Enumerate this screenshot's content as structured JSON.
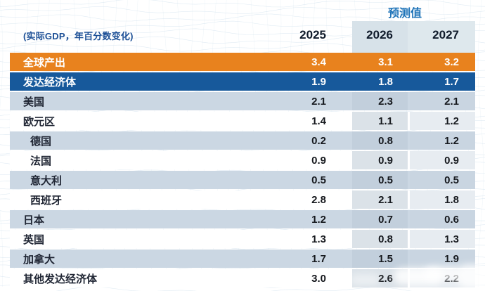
{
  "header": {
    "forecast_label": "预测值",
    "note": "(实际GDP，年百分数变化)",
    "years": [
      "2025",
      "2026",
      "2027"
    ]
  },
  "colors": {
    "orange": "#E8821E",
    "blue": "#17599B",
    "shaded": "#CBD7E3",
    "c26w": "#DBE2E8",
    "c26s": "#C2CFDC",
    "c27w": "#E7ECF1",
    "c27s": "#C9D5E1",
    "band": "#DEE8ED",
    "band2026": "#D7E2E9",
    "forecast": "#1E73B8",
    "note": "#1C4F96",
    "year": "#101B2B",
    "value": "#15181D",
    "label": "#202634"
  },
  "chart_data": {
    "type": "table",
    "title": "预测值",
    "note": "(实际GDP，年百分数变化)",
    "columns": [
      "2025",
      "2026",
      "2027"
    ],
    "forecast_columns": [
      "2026",
      "2027"
    ],
    "rows": [
      {
        "label": "全球产出",
        "values": [
          "3.4",
          "3.1",
          "3.2"
        ],
        "emphasis": "orange",
        "indent": false
      },
      {
        "label": "发达经济体",
        "values": [
          "1.9",
          "1.8",
          "1.7"
        ],
        "emphasis": "blue",
        "indent": false
      },
      {
        "label": "美国",
        "values": [
          "2.1",
          "2.3",
          "2.1"
        ],
        "emphasis": null,
        "indent": false
      },
      {
        "label": "欧元区",
        "values": [
          "1.4",
          "1.1",
          "1.2"
        ],
        "emphasis": null,
        "indent": false
      },
      {
        "label": "德国",
        "values": [
          "0.2",
          "0.8",
          "1.2"
        ],
        "emphasis": null,
        "indent": true
      },
      {
        "label": "法国",
        "values": [
          "0.9",
          "0.9",
          "0.9"
        ],
        "emphasis": null,
        "indent": true
      },
      {
        "label": "意大利",
        "values": [
          "0.5",
          "0.5",
          "0.5"
        ],
        "emphasis": null,
        "indent": true
      },
      {
        "label": "西班牙",
        "values": [
          "2.8",
          "2.1",
          "1.8"
        ],
        "emphasis": null,
        "indent": true
      },
      {
        "label": "日本",
        "values": [
          "1.2",
          "0.7",
          "0.6"
        ],
        "emphasis": null,
        "indent": false
      },
      {
        "label": "英国",
        "values": [
          "1.3",
          "0.8",
          "1.3"
        ],
        "emphasis": null,
        "indent": false
      },
      {
        "label": "加拿大",
        "values": [
          "1.7",
          "1.5",
          "1.9"
        ],
        "emphasis": null,
        "indent": false
      },
      {
        "label": "其他发达经济体",
        "values": [
          "3.0",
          "2.6",
          "2.2"
        ],
        "emphasis": null,
        "indent": false,
        "partially_obscured": true
      }
    ]
  }
}
